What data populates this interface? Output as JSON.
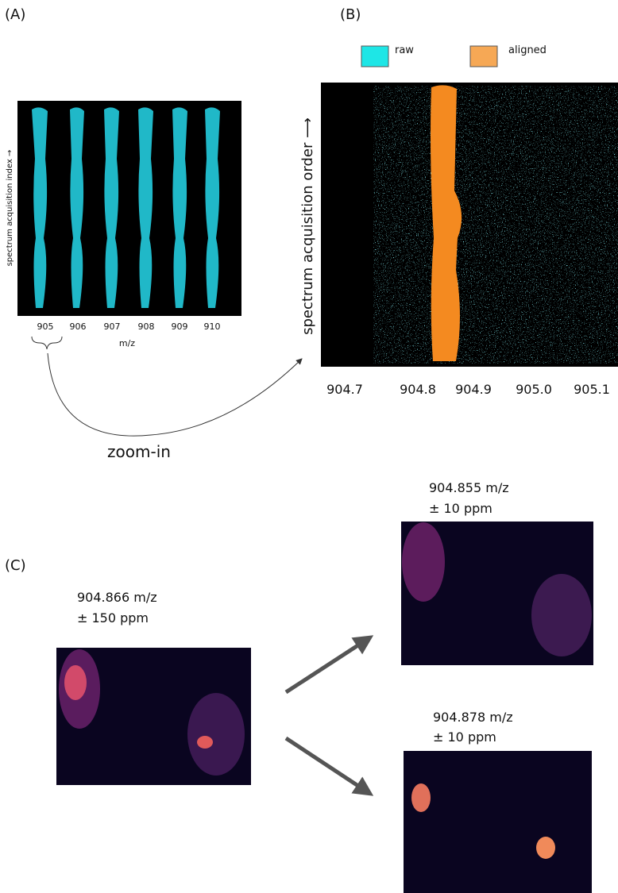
{
  "panel_a": {
    "label": "(A)",
    "y_label": "spectrum acquisition index →",
    "x_label": "m/z",
    "xticks": [
      "905",
      "906",
      "907",
      "908",
      "909",
      "910"
    ]
  },
  "panel_b": {
    "label": "(B)",
    "legend": [
      "raw",
      "aligned"
    ],
    "y_label": "spectrum acquisition order ⟶",
    "xticks": [
      "904.7",
      "904.8",
      "904.9",
      "905.0",
      "905.1"
    ]
  },
  "zoom_label": "zoom-in",
  "panel_c": {
    "label": "(C)",
    "images": [
      {
        "line1": "904.866 m/z",
        "line2": "± 150 ppm"
      },
      {
        "line1": "904.855 m/z",
        "line2": "± 10 ppm"
      },
      {
        "line1": "904.878 m/z",
        "line2": "± 10 ppm"
      }
    ]
  }
}
